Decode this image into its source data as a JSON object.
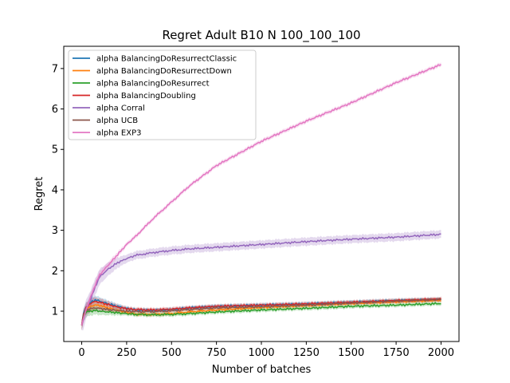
{
  "chart_data": {
    "type": "line",
    "title": "Regret Adult B10 N 100_100_100",
    "xlabel": "Number of batches",
    "ylabel": "Regret",
    "xlim": [
      -100,
      2100
    ],
    "ylim": [
      0.25,
      7.55
    ],
    "xticks": [
      0,
      250,
      500,
      750,
      1000,
      1250,
      1500,
      1750,
      2000
    ],
    "yticks": [
      1,
      2,
      3,
      4,
      5,
      6,
      7
    ],
    "grid": false,
    "legend_position": "top-left",
    "series": [
      {
        "name": "alpha BalancingDoResurrectClassic",
        "color": "#1f77b4",
        "x": [
          0,
          10,
          25,
          50,
          75,
          100,
          150,
          200,
          250,
          300,
          400,
          500,
          600,
          750,
          1000,
          1250,
          1500,
          1750,
          2000
        ],
        "y": [
          0.65,
          0.95,
          1.1,
          1.22,
          1.28,
          1.25,
          1.18,
          1.12,
          1.07,
          1.03,
          1.02,
          1.04,
          1.08,
          1.12,
          1.15,
          1.18,
          1.22,
          1.26,
          1.29
        ],
        "band": 0.05
      },
      {
        "name": "alpha BalancingDoResurrectDown",
        "color": "#ff7f0e",
        "x": [
          0,
          10,
          25,
          50,
          75,
          100,
          150,
          200,
          250,
          300,
          400,
          500,
          600,
          750,
          1000,
          1250,
          1500,
          1750,
          2000
        ],
        "y": [
          0.65,
          0.9,
          1.05,
          1.12,
          1.15,
          1.14,
          1.08,
          1.02,
          0.97,
          0.93,
          0.92,
          0.94,
          0.98,
          1.03,
          1.09,
          1.14,
          1.19,
          1.23,
          1.27
        ],
        "band": 0.05
      },
      {
        "name": "alpha BalancingDoResurrect",
        "color": "#2ca02c",
        "x": [
          0,
          10,
          25,
          50,
          75,
          100,
          150,
          200,
          250,
          300,
          400,
          500,
          600,
          750,
          1000,
          1250,
          1500,
          1750,
          2000
        ],
        "y": [
          0.65,
          0.88,
          0.98,
          1.0,
          1.02,
          1.0,
          0.98,
          0.96,
          0.94,
          0.92,
          0.91,
          0.92,
          0.94,
          0.98,
          1.03,
          1.07,
          1.12,
          1.15,
          1.19
        ],
        "band": 0.05
      },
      {
        "name": "alpha BalancingDoubling",
        "color": "#d62728",
        "x": [
          0,
          10,
          25,
          50,
          75,
          100,
          150,
          200,
          250,
          300,
          400,
          500,
          600,
          750,
          1000,
          1250,
          1500,
          1750,
          2000
        ],
        "y": [
          0.65,
          0.92,
          1.08,
          1.2,
          1.24,
          1.22,
          1.16,
          1.1,
          1.06,
          1.04,
          1.03,
          1.05,
          1.08,
          1.12,
          1.15,
          1.18,
          1.22,
          1.26,
          1.3
        ],
        "band": 0.05
      },
      {
        "name": "alpha Corral",
        "color": "#9467bd",
        "x": [
          0,
          25,
          50,
          75,
          100,
          150,
          200,
          250,
          300,
          400,
          500,
          600,
          750,
          1000,
          1250,
          1500,
          1750,
          2000
        ],
        "y": [
          0.65,
          1.05,
          1.3,
          1.6,
          1.85,
          2.05,
          2.2,
          2.3,
          2.38,
          2.45,
          2.5,
          2.54,
          2.58,
          2.65,
          2.72,
          2.78,
          2.83,
          2.9
        ],
        "band": 0.1
      },
      {
        "name": "alpha UCB",
        "color": "#8c564b",
        "x": [
          0,
          10,
          25,
          50,
          75,
          100,
          150,
          200,
          250,
          300,
          400,
          500,
          600,
          750,
          1000,
          1250,
          1500,
          1750,
          2000
        ],
        "y": [
          0.65,
          0.9,
          1.02,
          1.06,
          1.08,
          1.07,
          1.04,
          1.02,
          1.0,
          0.99,
          0.99,
          1.01,
          1.04,
          1.08,
          1.11,
          1.15,
          1.2,
          1.25,
          1.29
        ],
        "band": 0.04
      },
      {
        "name": "alpha EXP3",
        "color": "#e377c2",
        "x": [
          0,
          25,
          50,
          75,
          100,
          150,
          200,
          250,
          300,
          400,
          500,
          600,
          750,
          1000,
          1250,
          1500,
          1750,
          2000
        ],
        "y": [
          0.65,
          1.05,
          1.35,
          1.65,
          1.9,
          2.15,
          2.4,
          2.65,
          2.85,
          3.3,
          3.7,
          4.1,
          4.6,
          5.2,
          5.7,
          6.15,
          6.65,
          7.1
        ],
        "band": 0.05
      }
    ]
  }
}
